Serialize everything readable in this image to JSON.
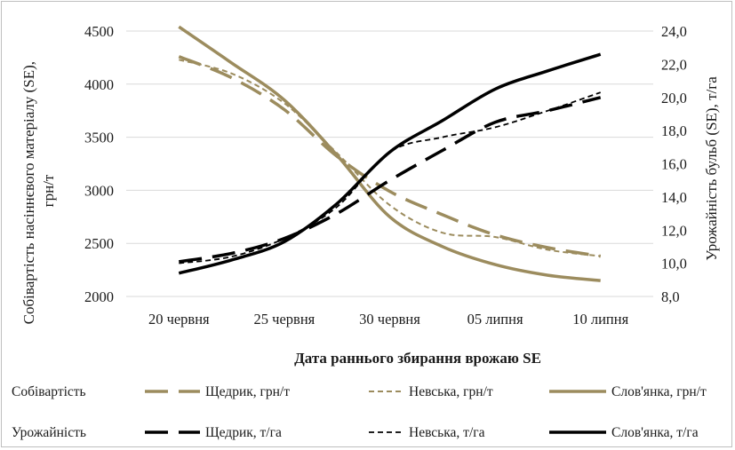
{
  "chart_data": {
    "type": "line",
    "categories": [
      "20 червня",
      "25 червня",
      "30 червня",
      "05 липня",
      "10 липня"
    ],
    "xlabel": "Дата раннього збирання врожаю SE",
    "y_left": {
      "label": "Собівартість насіннєвого матеріалу (SE), грн/т",
      "label_lines": [
        "Собівартість насіннєвого матеріалу (SE),",
        "грн/т"
      ],
      "range": [
        2000,
        4500
      ],
      "ticks": [
        "2000",
        "2500",
        "3000",
        "3500",
        "4000",
        "4500"
      ]
    },
    "y_right": {
      "label": "Урожайність бульб (SE), т/га",
      "range": [
        8,
        24
      ],
      "ticks": [
        "8,0",
        "10,0",
        "12,0",
        "14,0",
        "16,0",
        "18,0",
        "20,0",
        "22,0",
        "24,0"
      ]
    },
    "grid": true,
    "legend_position": "bottom",
    "series": [
      {
        "name": "Щедрик, грн/т",
        "group": "Собівартість",
        "axis": "left",
        "color": "#9c8c5e",
        "style": "longdash",
        "width": 3.5,
        "x": [
          0,
          0.5,
          1,
          1.5,
          2,
          2.5,
          3,
          3.5,
          4
        ],
        "values": [
          4260,
          4060,
          3760,
          3320,
          2990,
          2770,
          2580,
          2460,
          2380
        ]
      },
      {
        "name": "Невська, грн/т",
        "group": "Собівартість",
        "axis": "left",
        "color": "#9c8c5e",
        "style": "shortdash",
        "width": 2,
        "x": [
          0,
          0.5,
          1,
          1.5,
          2,
          2.5,
          3,
          3.5,
          4
        ],
        "values": [
          4230,
          4100,
          3820,
          3350,
          2860,
          2600,
          2560,
          2440,
          2380
        ]
      },
      {
        "name": "Слов'янка, грн/т",
        "group": "Собівартість",
        "axis": "left",
        "color": "#9c8c5e",
        "style": "solid",
        "width": 3.5,
        "x": [
          0,
          0.5,
          1,
          1.5,
          2,
          2.5,
          3,
          3.5,
          4
        ],
        "values": [
          4540,
          4200,
          3850,
          3330,
          2750,
          2470,
          2300,
          2200,
          2150
        ]
      },
      {
        "name": "Щедрик, т/га",
        "group": "Урожайність",
        "axis": "right",
        "color": "#000000",
        "style": "longdash",
        "width": 3.5,
        "x": [
          0,
          0.5,
          1,
          1.5,
          2,
          2.5,
          3,
          3.5,
          4
        ],
        "values": [
          10.1,
          10.6,
          11.5,
          13.0,
          15.0,
          16.8,
          18.5,
          19.2,
          20.0
        ]
      },
      {
        "name": "Невська, т/га",
        "group": "Урожайність",
        "axis": "right",
        "color": "#000000",
        "style": "shortdash",
        "width": 1.8,
        "x": [
          0,
          0.5,
          1,
          1.5,
          2,
          2.5,
          3,
          3.5,
          4
        ],
        "values": [
          10.0,
          10.4,
          11.5,
          13.4,
          16.7,
          17.6,
          18.2,
          19.2,
          20.3
        ]
      },
      {
        "name": "Слов'янка, т/га",
        "group": "Урожайність",
        "axis": "right",
        "color": "#000000",
        "style": "solid",
        "width": 3.5,
        "x": [
          0,
          0.5,
          1,
          1.5,
          2,
          2.5,
          3,
          3.5,
          4
        ],
        "values": [
          9.4,
          10.2,
          11.3,
          13.6,
          16.7,
          18.6,
          20.5,
          21.6,
          22.6
        ]
      }
    ],
    "legend_rows": [
      {
        "label": "Собівартість",
        "items": [
          0,
          1,
          2
        ]
      },
      {
        "label": "Урожайність",
        "items": [
          3,
          4,
          5
        ]
      }
    ]
  }
}
